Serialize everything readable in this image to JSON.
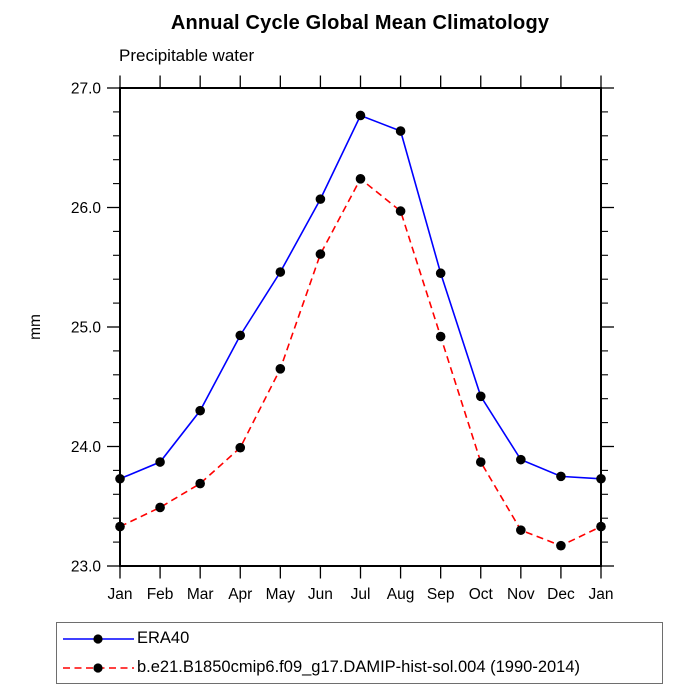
{
  "chart_data": {
    "type": "line",
    "title": "Annual Cycle Global Mean Climatology",
    "subtitle": "Precipitable water",
    "ylabel": "mm",
    "ylim": [
      23.0,
      27.0
    ],
    "ytick_values": [
      23.0,
      24.0,
      25.0,
      26.0,
      27.0
    ],
    "ytick_labels": [
      "23.0",
      "24.0",
      "25.0",
      "26.0",
      "27.0"
    ],
    "ytick_minor_step": 0.2,
    "x_categories": [
      "Jan",
      "Feb",
      "Mar",
      "Apr",
      "May",
      "Jun",
      "Jul",
      "Aug",
      "Sep",
      "Oct",
      "Nov",
      "Dec",
      "Jan"
    ],
    "grid": false,
    "legend_position": "bottom-left",
    "axis_color": "#000000",
    "marker_color": "#000000",
    "series": [
      {
        "name": "ERA40",
        "line_color": "#0000ff",
        "line_style": "solid",
        "marker": "circle",
        "values": [
          23.73,
          23.87,
          24.3,
          24.93,
          25.46,
          26.07,
          26.77,
          26.64,
          25.45,
          24.42,
          23.89,
          23.75,
          23.73
        ]
      },
      {
        "name": "b.e21.B1850cmip6.f09_g17.DAMIP-hist-sol.004 (1990-2014)",
        "line_color": "#ff0000",
        "line_style": "dashed",
        "marker": "circle",
        "values": [
          23.33,
          23.49,
          23.69,
          23.99,
          24.65,
          25.61,
          26.24,
          25.97,
          24.92,
          23.87,
          23.3,
          23.17,
          23.33
        ]
      }
    ]
  }
}
